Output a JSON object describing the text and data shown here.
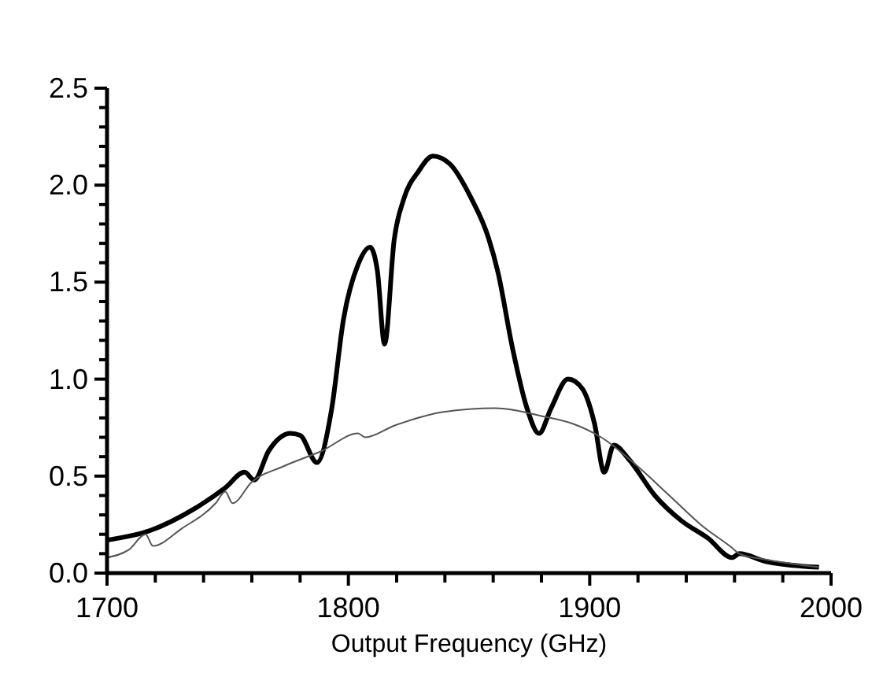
{
  "chart_data": {
    "type": "line",
    "xlabel": "Output Frequency (GHz)",
    "xlim": [
      1700,
      2000
    ],
    "xticks": [
      1700,
      {
        "value": 1720,
        "label": null
      },
      {
        "value": 1740,
        "label": null
      },
      {
        "value": 1760,
        "label": null
      },
      {
        "value": 1780,
        "label": null
      },
      1800,
      {
        "value": 1820,
        "label": null
      },
      {
        "value": 1840,
        "label": null
      },
      {
        "value": 1860,
        "label": null
      },
      {
        "value": 1880,
        "label": null
      },
      1900,
      {
        "value": 1920,
        "label": null
      },
      {
        "value": 1940,
        "label": null
      },
      {
        "value": 1960,
        "label": null
      },
      {
        "value": 1980,
        "label": null
      },
      2000
    ],
    "ylim": [
      0,
      2.5
    ],
    "yticks": [
      {
        "value": 0,
        "label": "0.0"
      },
      {
        "value": 0.1,
        "label": null
      },
      {
        "value": 0.2,
        "label": null
      },
      {
        "value": 0.3,
        "label": null
      },
      {
        "value": 0.4,
        "label": null
      },
      0.5,
      {
        "value": 0.6,
        "label": null
      },
      {
        "value": 0.7,
        "label": null
      },
      {
        "value": 0.8,
        "label": null
      },
      {
        "value": 0.9,
        "label": null
      },
      {
        "value": 1,
        "label": "1.0"
      },
      {
        "value": 1.1,
        "label": null
      },
      {
        "value": 1.2,
        "label": null
      },
      {
        "value": 1.3,
        "label": null
      },
      {
        "value": 1.4,
        "label": null
      },
      1.5,
      {
        "value": 1.6,
        "label": null
      },
      {
        "value": 1.7,
        "label": null
      },
      {
        "value": 1.8,
        "label": null
      },
      {
        "value": 1.9,
        "label": null
      },
      {
        "value": 2,
        "label": "2.0"
      },
      {
        "value": 2.1,
        "label": null
      },
      {
        "value": 2.2,
        "label": null
      },
      {
        "value": 2.3,
        "label": null
      },
      {
        "value": 2.4,
        "label": null
      },
      2.5
    ],
    "grid": false,
    "marker": "none",
    "series": [
      {
        "color": "#000000",
        "x": [
          1700,
          1718,
          1736,
          1749,
          1757,
          1761,
          1767,
          1776,
          1780,
          1787,
          1793,
          1798,
          1804,
          1809,
          1812,
          1815,
          1819,
          1823,
          1829,
          1835,
          1842,
          1851,
          1858,
          1862,
          1868,
          1874,
          1879,
          1884,
          1891,
          1897,
          1902,
          1906,
          1910,
          1916,
          1927,
          1938,
          1949,
          1959,
          1962,
          1973,
          1995
        ],
        "values": [
          0.17,
          0.22,
          0.33,
          0.44,
          0.52,
          0.48,
          0.63,
          0.72,
          0.71,
          0.57,
          0.84,
          1.31,
          1.59,
          1.68,
          1.56,
          1.18,
          1.72,
          1.93,
          2.07,
          2.15,
          2.11,
          1.93,
          1.73,
          1.55,
          1.16,
          0.85,
          0.72,
          0.85,
          1.0,
          0.95,
          0.77,
          0.52,
          0.66,
          0.59,
          0.4,
          0.27,
          0.18,
          0.08,
          0.1,
          0.06,
          0.03
        ]
      },
      {
        "color": "#555555",
        "x": [
          1700,
          1709,
          1716,
          1719,
          1731,
          1745,
          1749,
          1752,
          1760,
          1773,
          1789,
          1804,
          1807,
          1819,
          1839,
          1861,
          1880,
          1893,
          1906,
          1919,
          1933,
          1946,
          1959,
          1962,
          1973,
          1995
        ],
        "values": [
          0.08,
          0.12,
          0.2,
          0.14,
          0.23,
          0.36,
          0.42,
          0.36,
          0.47,
          0.55,
          0.63,
          0.72,
          0.7,
          0.76,
          0.83,
          0.85,
          0.81,
          0.77,
          0.69,
          0.56,
          0.4,
          0.25,
          0.13,
          0.1,
          0.07,
          0.03
        ]
      }
    ]
  }
}
